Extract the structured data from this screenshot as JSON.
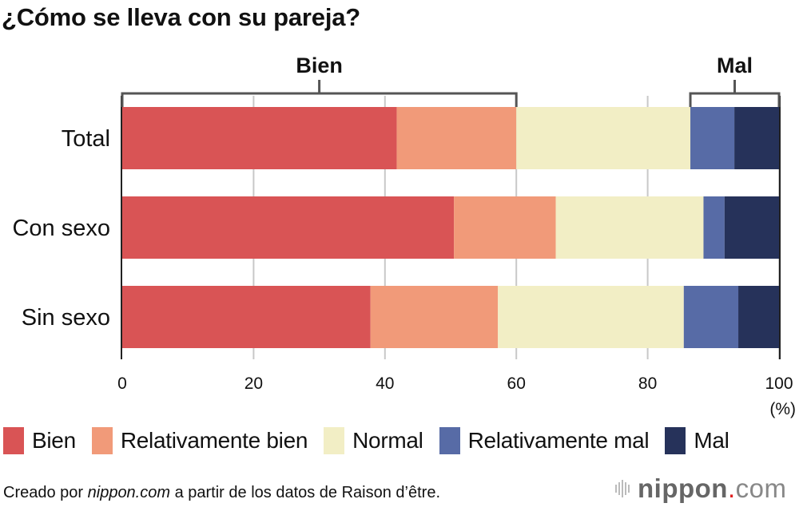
{
  "chart_data": {
    "type": "bar",
    "orientation": "horizontal",
    "stacked": true,
    "title": "¿Cómo se lleva con su pareja?",
    "xlabel": "",
    "ylabel": "",
    "x_unit_label": "(%)",
    "xlim": [
      0,
      100
    ],
    "xticks": [
      0,
      20,
      40,
      60,
      80,
      100
    ],
    "xtick_labels": [
      "0",
      "20",
      "40",
      "60",
      "80",
      "100"
    ],
    "grid": true,
    "categories": [
      "Total",
      "Con sexo",
      "Sin sexo"
    ],
    "series": [
      {
        "name": "Bien",
        "color": "#d95455",
        "values": [
          41.8,
          50.5,
          37.8
        ]
      },
      {
        "name": "Relativamente bien",
        "color": "#f19a79",
        "values": [
          18.2,
          15.5,
          19.4
        ]
      },
      {
        "name": "Normal",
        "color": "#f2eec5",
        "values": [
          26.5,
          22.5,
          28.3
        ]
      },
      {
        "name": "Relativamente mal",
        "color": "#576ba6",
        "values": [
          6.7,
          3.2,
          8.3
        ]
      },
      {
        "name": "Mal",
        "color": "#26325a",
        "values": [
          6.8,
          8.3,
          6.2
        ]
      }
    ],
    "brackets": [
      {
        "label": "Bien",
        "from": 0,
        "to": 60
      },
      {
        "label": "Mal",
        "from": 86.5,
        "to": 100
      }
    ],
    "legend": {
      "position": "bottom"
    }
  },
  "footer": {
    "source_prefix": "Creado por ",
    "source_site": "nippon.com",
    "source_suffix": " a partir de los datos de Raison d’être.",
    "brand_name": "nippon",
    "brand_dot": ".",
    "brand_tld": "com"
  }
}
